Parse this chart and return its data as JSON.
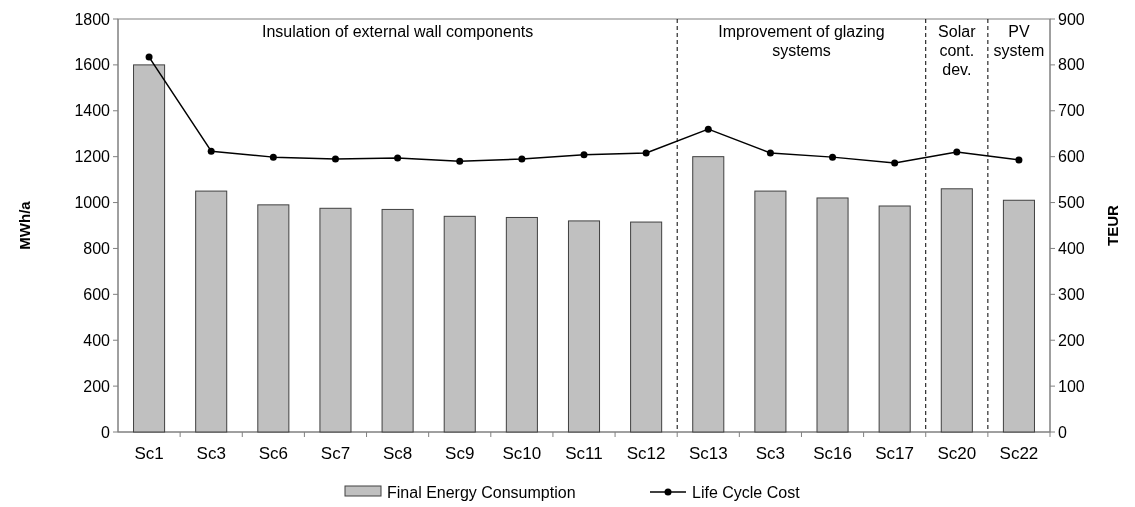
{
  "chart_data": {
    "type": "bar",
    "ylabel": "MWh/a",
    "y2label": "TEUR",
    "categories": [
      "Sc1",
      "Sc3",
      "Sc6",
      "Sc7",
      "Sc8",
      "Sc9",
      "Sc10",
      "Sc11",
      "Sc12",
      "Sc13",
      "Sc3",
      "Sc16",
      "Sc17",
      "Sc20",
      "Sc22"
    ],
    "series": [
      {
        "name": "Final Energy Consumption",
        "type": "bar",
        "color": "#c0c0c0",
        "values": [
          1600,
          1050,
          990,
          975,
          970,
          940,
          935,
          920,
          915,
          1200,
          1050,
          1020,
          985,
          1060,
          1010
        ]
      },
      {
        "name": "Life Cycle Cost",
        "type": "line",
        "axis": "y2",
        "color": "#000000",
        "marker": "circle",
        "values": [
          817,
          612,
          599,
          595,
          597,
          590,
          595,
          604,
          608,
          660,
          608,
          599,
          586,
          610,
          593
        ]
      }
    ],
    "ylim": [
      0,
      1800
    ],
    "yticks": [
      0,
      200,
      400,
      600,
      800,
      1000,
      1200,
      1400,
      1600,
      1800
    ],
    "y2lim": [
      0,
      900
    ],
    "y2ticks": [
      0,
      100,
      200,
      300,
      400,
      500,
      600,
      700,
      800,
      900
    ],
    "annotations": [
      "Insulation of external wall components",
      "Improvement of glazing systems",
      "Solar cont. dev.",
      "PV system"
    ],
    "legend": "bottom",
    "grid": false
  }
}
